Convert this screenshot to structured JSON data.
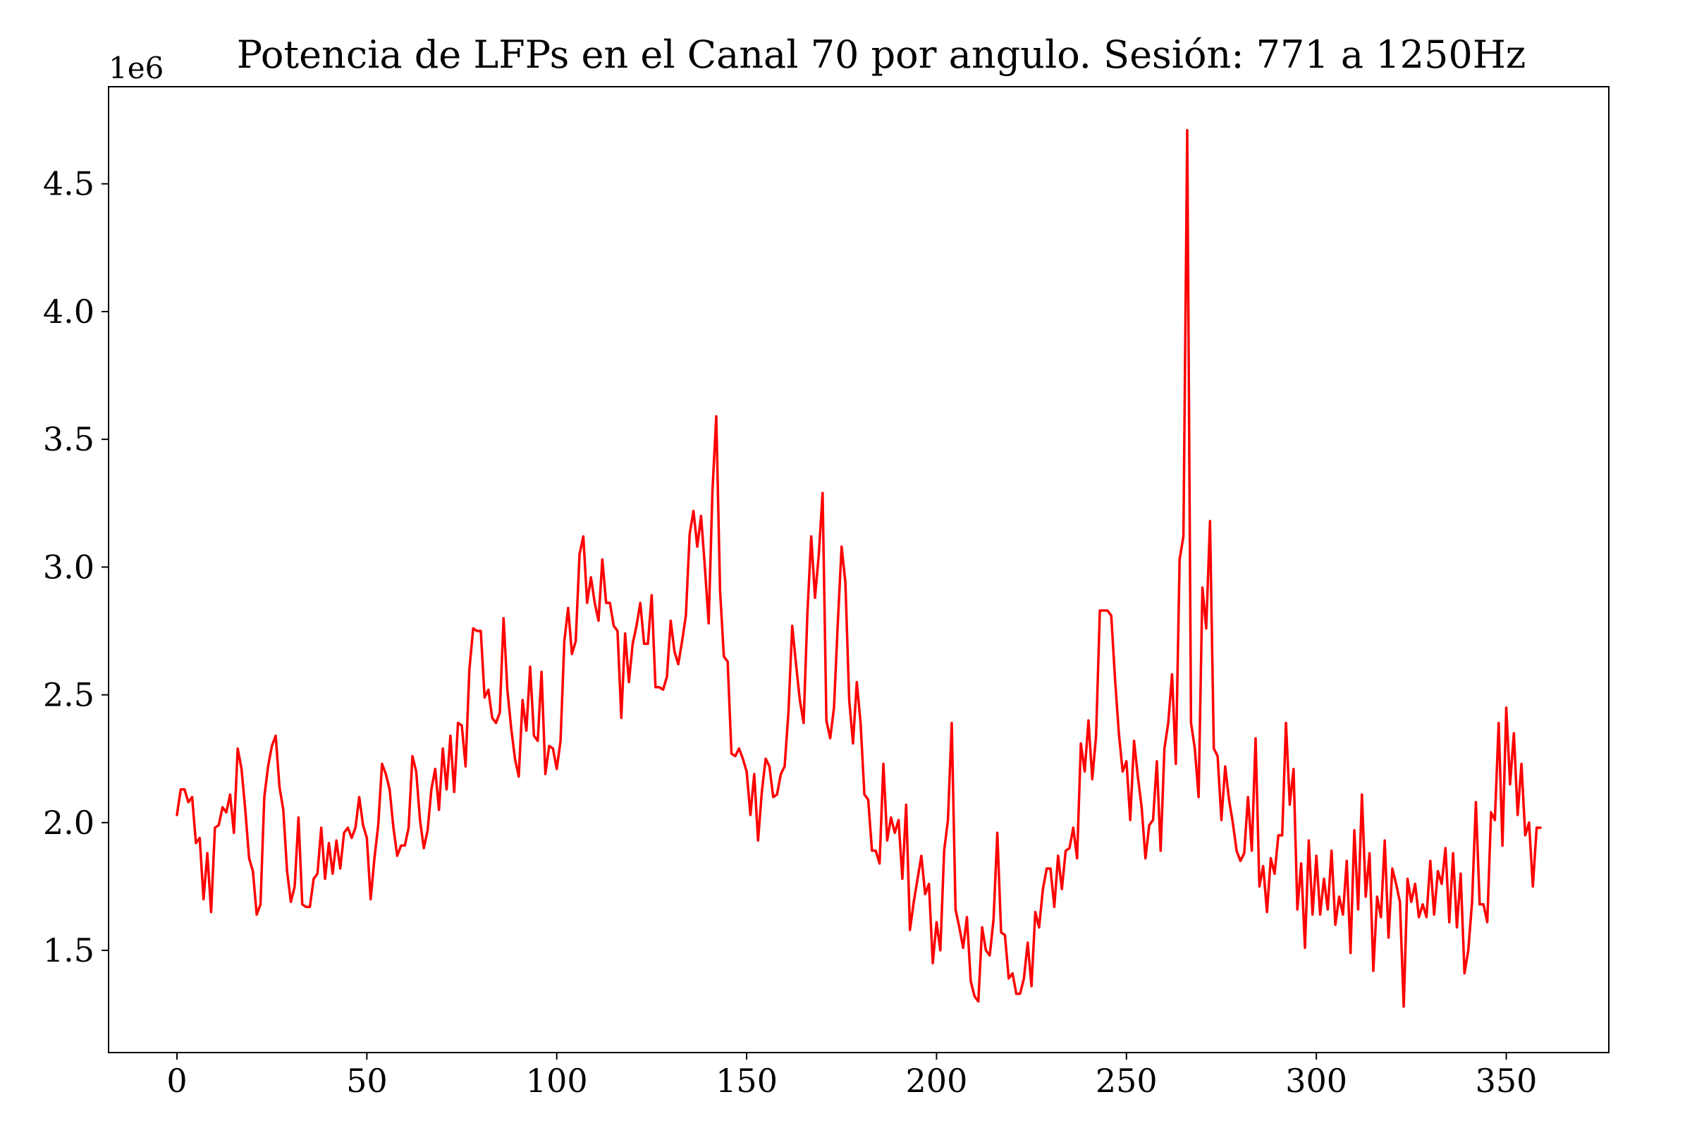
{
  "chart_data": {
    "type": "line",
    "title": "Potencia de LFPs en el Canal 70 por angulo. Sesión: 771 a 1250Hz",
    "xlabel": "",
    "ylabel": "",
    "offset_text": "1e6",
    "line_color": "#ff0000",
    "grid": false,
    "xlim": [
      -18,
      377
    ],
    "ylim": [
      1.1,
      4.88
    ],
    "xticks": [
      {
        "value": 0,
        "label": "0"
      },
      {
        "value": 50,
        "label": "50"
      },
      {
        "value": 100,
        "label": "100"
      },
      {
        "value": 150,
        "label": "150"
      },
      {
        "value": 200,
        "label": "200"
      },
      {
        "value": 250,
        "label": "250"
      },
      {
        "value": 300,
        "label": "300"
      },
      {
        "value": 350,
        "label": "350"
      }
    ],
    "yticks": [
      {
        "value": 1.5,
        "label": "1.5"
      },
      {
        "value": 2.0,
        "label": "2.0"
      },
      {
        "value": 2.5,
        "label": "2.5"
      },
      {
        "value": 3.0,
        "label": "3.0"
      },
      {
        "value": 3.5,
        "label": "3.5"
      },
      {
        "value": 4.0,
        "label": "4.0"
      },
      {
        "value": 4.5,
        "label": "4.5"
      }
    ],
    "x_start": 0,
    "x_step": 1,
    "series": [
      {
        "values": [
          2.03,
          2.13,
          2.13,
          2.08,
          2.1,
          1.92,
          1.94,
          1.7,
          1.88,
          1.65,
          1.98,
          1.99,
          2.06,
          2.04,
          2.11,
          1.96,
          2.29,
          2.21,
          2.05,
          1.86,
          1.81,
          1.64,
          1.68,
          2.1,
          2.22,
          2.3,
          2.34,
          2.14,
          2.05,
          1.81,
          1.69,
          1.75,
          2.02,
          1.68,
          1.67,
          1.67,
          1.78,
          1.8,
          1.98,
          1.78,
          1.92,
          1.8,
          1.93,
          1.82,
          1.96,
          1.98,
          1.94,
          1.98,
          2.1,
          1.99,
          1.94,
          1.7,
          1.86,
          1.99,
          2.23,
          2.19,
          2.13,
          1.98,
          1.87,
          1.91,
          1.91,
          1.98,
          2.26,
          2.2,
          2.01,
          1.9,
          1.97,
          2.13,
          2.21,
          2.05,
          2.29,
          2.13,
          2.34,
          2.12,
          2.39,
          2.38,
          2.22,
          2.6,
          2.76,
          2.75,
          2.75,
          2.49,
          2.52,
          2.41,
          2.39,
          2.43,
          2.8,
          2.52,
          2.37,
          2.25,
          2.18,
          2.48,
          2.36,
          2.61,
          2.34,
          2.32,
          2.59,
          2.19,
          2.3,
          2.29,
          2.21,
          2.32,
          2.71,
          2.84,
          2.66,
          2.71,
          3.05,
          3.12,
          2.86,
          2.96,
          2.86,
          2.79,
          3.03,
          2.86,
          2.86,
          2.77,
          2.75,
          2.41,
          2.74,
          2.55,
          2.7,
          2.77,
          2.86,
          2.7,
          2.7,
          2.89,
          2.53,
          2.53,
          2.52,
          2.57,
          2.79,
          2.67,
          2.62,
          2.71,
          2.81,
          3.13,
          3.22,
          3.08,
          3.2,
          3.0,
          2.78,
          3.3,
          3.59,
          2.91,
          2.65,
          2.63,
          2.27,
          2.26,
          2.29,
          2.25,
          2.2,
          2.03,
          2.19,
          1.93,
          2.12,
          2.25,
          2.22,
          2.1,
          2.11,
          2.19,
          2.22,
          2.43,
          2.77,
          2.62,
          2.48,
          2.39,
          2.82,
          3.12,
          2.88,
          3.05,
          3.29,
          2.4,
          2.33,
          2.45,
          2.78,
          3.08,
          2.94,
          2.48,
          2.31,
          2.55,
          2.39,
          2.11,
          2.09,
          1.89,
          1.89,
          1.84,
          2.23,
          1.93,
          2.02,
          1.96,
          2.01,
          1.78,
          2.07,
          1.58,
          1.69,
          1.78,
          1.87,
          1.72,
          1.76,
          1.45,
          1.61,
          1.5,
          1.89,
          2.01,
          2.39,
          1.66,
          1.59,
          1.51,
          1.63,
          1.38,
          1.32,
          1.3,
          1.59,
          1.5,
          1.48,
          1.62,
          1.96,
          1.57,
          1.56,
          1.39,
          1.41,
          1.33,
          1.33,
          1.39,
          1.53,
          1.36,
          1.65,
          1.59,
          1.74,
          1.82,
          1.82,
          1.67,
          1.87,
          1.74,
          1.89,
          1.9,
          1.98,
          1.86,
          2.31,
          2.2,
          2.4,
          2.17,
          2.34,
          2.83,
          2.83,
          2.83,
          2.81,
          2.56,
          2.35,
          2.2,
          2.24,
          2.01,
          2.32,
          2.18,
          2.06,
          1.86,
          1.99,
          2.01,
          2.24,
          1.89,
          2.29,
          2.39,
          2.58,
          2.23,
          3.03,
          3.12,
          4.71,
          2.39,
          2.29,
          2.1,
          2.92,
          2.76,
          3.18,
          2.29,
          2.26,
          2.01,
          2.22,
          2.09,
          2.0,
          1.89,
          1.85,
          1.88,
          2.1,
          1.89,
          2.33,
          1.75,
          1.83,
          1.65,
          1.86,
          1.8,
          1.95,
          1.95,
          2.39,
          2.07,
          2.21,
          1.66,
          1.84,
          1.51,
          1.93,
          1.64,
          1.87,
          1.64,
          1.78,
          1.66,
          1.89,
          1.6,
          1.71,
          1.64,
          1.85,
          1.49,
          1.97,
          1.66,
          2.11,
          1.71,
          1.88,
          1.42,
          1.71,
          1.63,
          1.93,
          1.55,
          1.82,
          1.76,
          1.69,
          1.28,
          1.78,
          1.69,
          1.76,
          1.63,
          1.68,
          1.63,
          1.85,
          1.64,
          1.81,
          1.76,
          1.9,
          1.61,
          1.88,
          1.59,
          1.8,
          1.41,
          1.5,
          1.69,
          2.08,
          1.68,
          1.68,
          1.61,
          2.04,
          2.01,
          2.39,
          1.91,
          2.45,
          2.15,
          2.35,
          2.03,
          2.23,
          1.95,
          2.0,
          1.75,
          1.98,
          1.98
        ]
      }
    ]
  }
}
